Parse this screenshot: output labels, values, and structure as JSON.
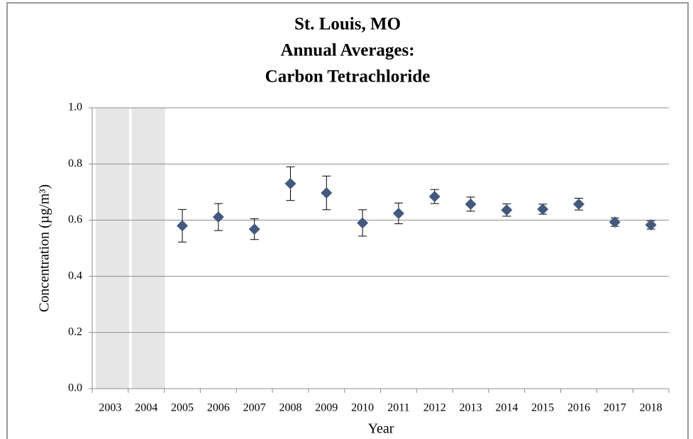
{
  "chart_data": {
    "type": "errorbar",
    "title_lines": [
      "St. Louis, MO",
      "Annual Averages:",
      "Carbon Tetrachloride"
    ],
    "x_label": "Year",
    "y_label": "Concentration (µg/m³)",
    "categories": [
      "2003",
      "2004",
      "2005",
      "2006",
      "2007",
      "2008",
      "2009",
      "2010",
      "2011",
      "2012",
      "2013",
      "2014",
      "2015",
      "2016",
      "2017",
      "2018"
    ],
    "values": [
      null,
      null,
      0.58,
      0.611,
      0.568,
      0.73,
      0.697,
      0.59,
      0.624,
      0.684,
      0.657,
      0.636,
      0.639,
      0.657,
      0.593,
      0.583
    ],
    "errors": [
      null,
      null,
      0.058,
      0.048,
      0.037,
      0.06,
      0.06,
      0.047,
      0.037,
      0.025,
      0.025,
      0.022,
      0.018,
      0.021,
      0.015,
      0.015
    ],
    "color": "#44597e",
    "ylim": [
      0,
      1
    ],
    "yticks": [
      {
        "value": 0,
        "label": "0.0"
      },
      {
        "value": 0.2,
        "label": "0.2"
      },
      {
        "value": 0.4,
        "label": "0.4"
      },
      {
        "value": 0.6,
        "label": "0.6"
      },
      {
        "value": 0.8,
        "label": "0.8"
      },
      {
        "value": 1,
        "label": "1.0"
      }
    ],
    "grid": true
  }
}
